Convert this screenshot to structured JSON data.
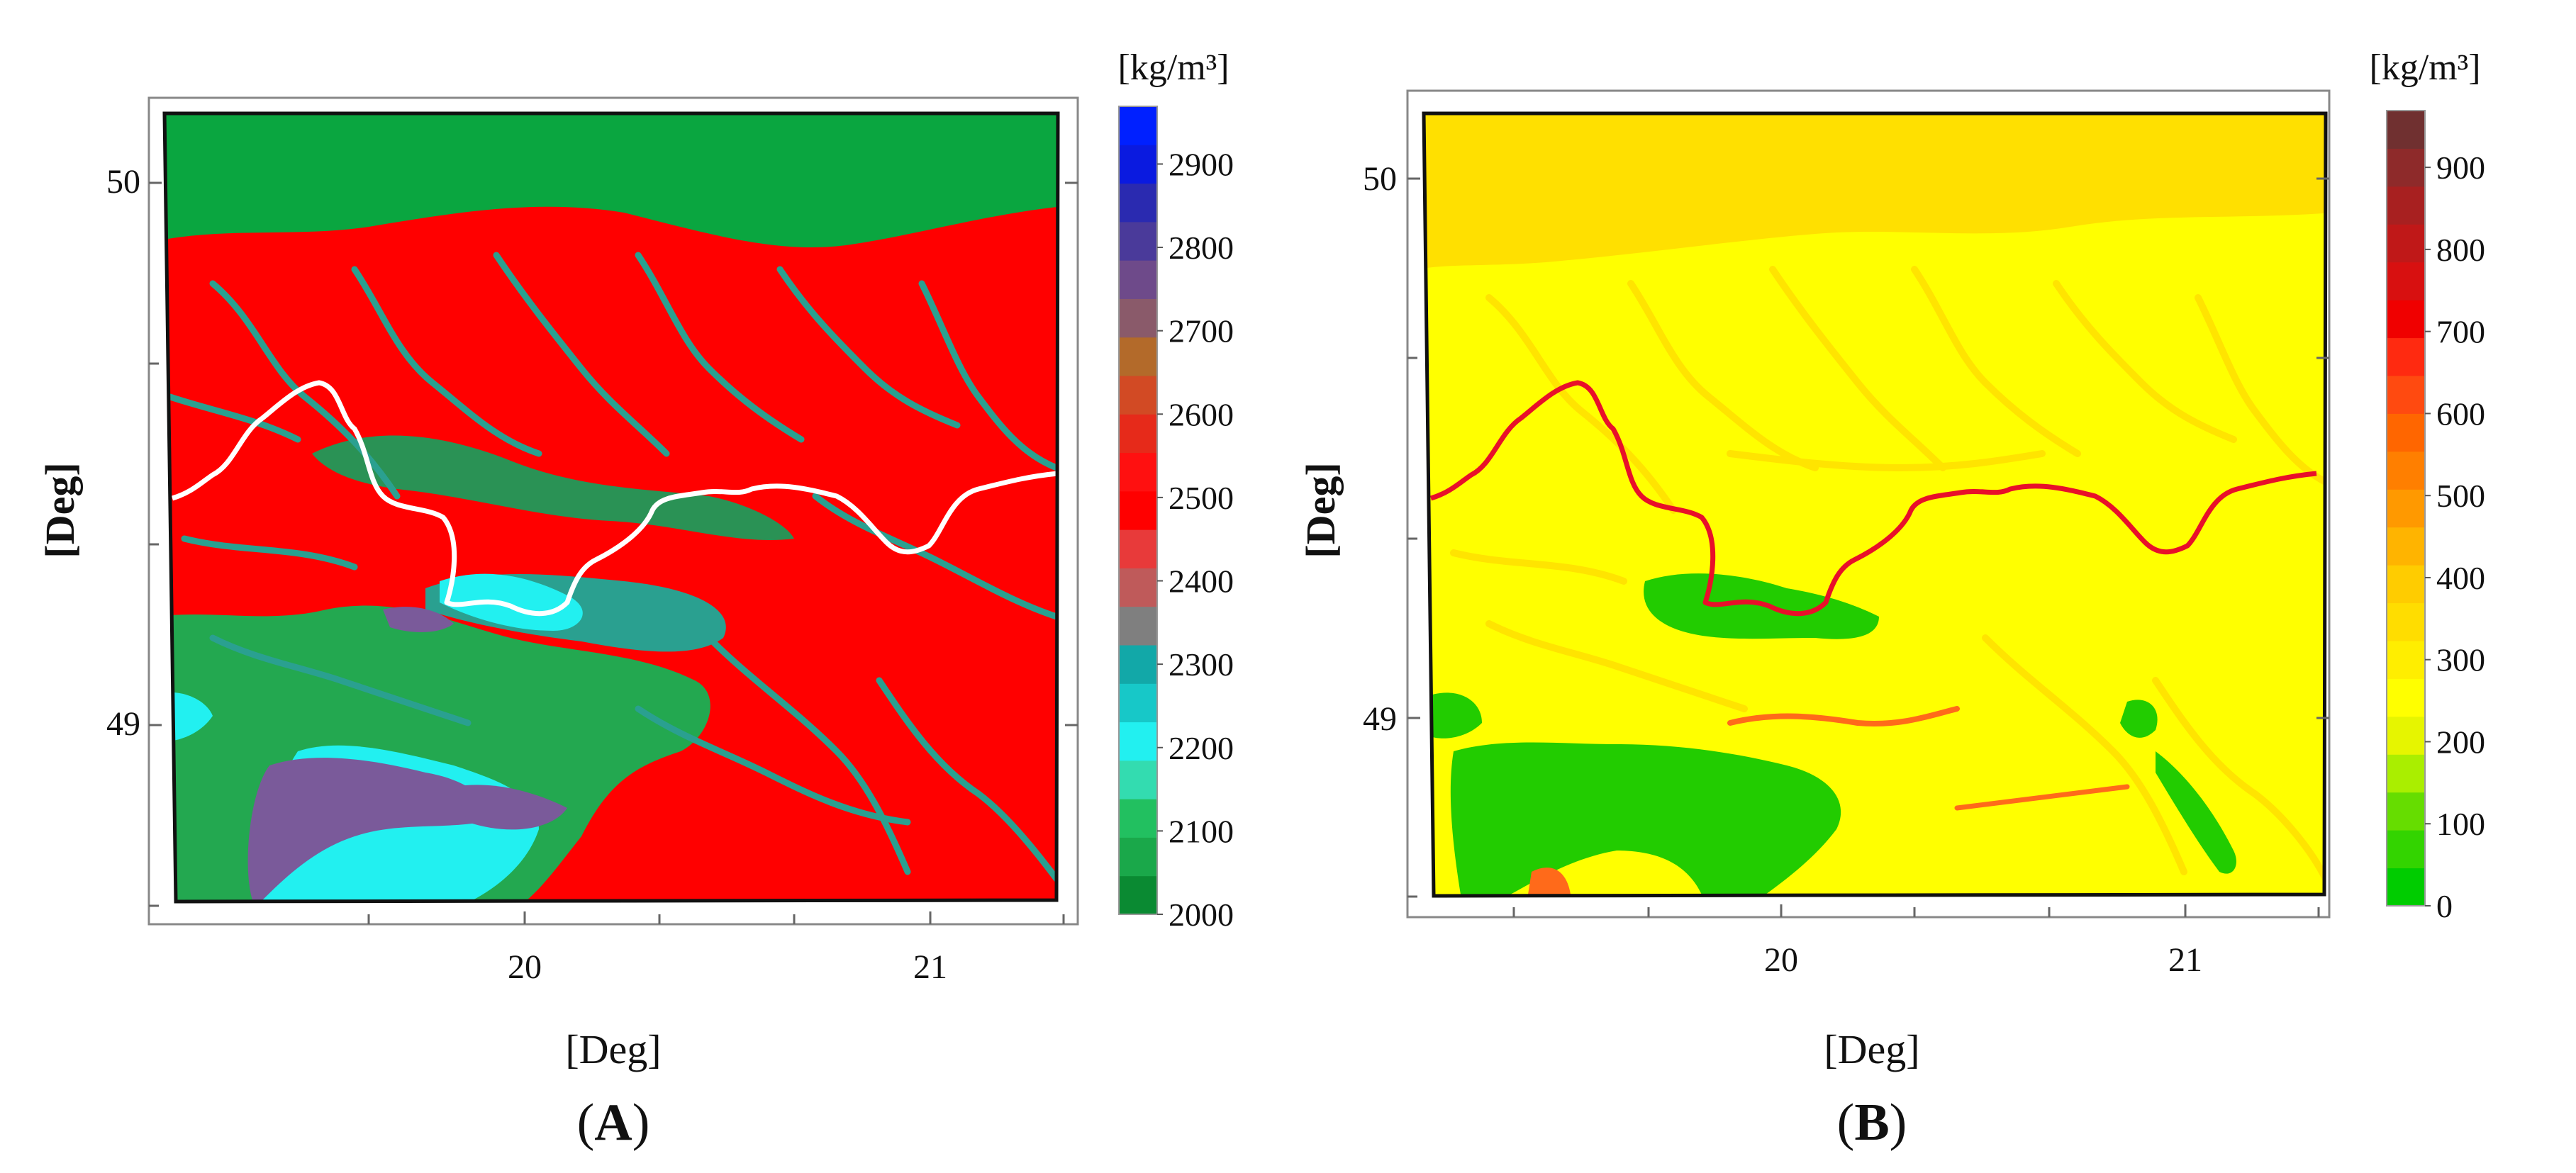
{
  "panels": [
    {
      "id": "A",
      "label_open": "(",
      "label_letter": "A",
      "label_close": ")",
      "xlabel": "[Deg]",
      "ylabel": "[Deg]",
      "x_ticks": [
        "20",
        "21"
      ],
      "y_ticks": [
        "50",
        "49"
      ],
      "colorbar": {
        "unit": "[kg/m³]",
        "labels": [
          "2900",
          "2800",
          "2700",
          "2600",
          "2500",
          "2400",
          "2300",
          "2200",
          "2100",
          "2000"
        ],
        "colors": [
          "#0a8a32",
          "#1aa84a",
          "#22c060",
          "#33dcb0",
          "#22f0f0",
          "#17c8c8",
          "#12a8a8",
          "#7f7f7f",
          "#bf5a5a",
          "#e83a3a",
          "#ff0000",
          "#ff1010",
          "#e62a1a",
          "#d24a24",
          "#b36a2a",
          "#8a5a6a",
          "#6e4a8a",
          "#4a3a9a",
          "#2a2ab0",
          "#0a1ae0",
          "#0020ff"
        ]
      },
      "map_colors": {
        "dominant": "#ff0000",
        "north_band": "#0aa640",
        "river": "#2aa090",
        "south_green": "#23a850",
        "cyan": "#22f0f0",
        "purple": "#7a5a9a",
        "border": "#ffffff"
      }
    },
    {
      "id": "B",
      "label_open": "(",
      "label_letter": "B",
      "label_close": ")",
      "xlabel": "[Deg]",
      "ylabel": "[Deg]",
      "x_ticks": [
        "20",
        "21"
      ],
      "y_ticks": [
        "50",
        "49"
      ],
      "colorbar": {
        "unit": "[kg/m³]",
        "labels": [
          "900",
          "800",
          "700",
          "600",
          "500",
          "400",
          "300",
          "200",
          "100",
          "0"
        ],
        "colors": [
          "#00cc00",
          "#33d400",
          "#66dd00",
          "#aaee00",
          "#e6f500",
          "#ffff00",
          "#ffee00",
          "#ffdd00",
          "#ffcc00",
          "#ffb400",
          "#ff9900",
          "#ff7f00",
          "#ff6600",
          "#ff4a10",
          "#ff2a10",
          "#f00000",
          "#d81010",
          "#c01818",
          "#a82020",
          "#8e2a2a",
          "#703030"
        ]
      },
      "map_colors": {
        "dominant": "#ffff00",
        "north_band": "#ffe000",
        "river": "#ffe400",
        "south_green": "#22cc00",
        "patch_orange": "#ff6a1a",
        "border": "#e8102a"
      }
    }
  ]
}
